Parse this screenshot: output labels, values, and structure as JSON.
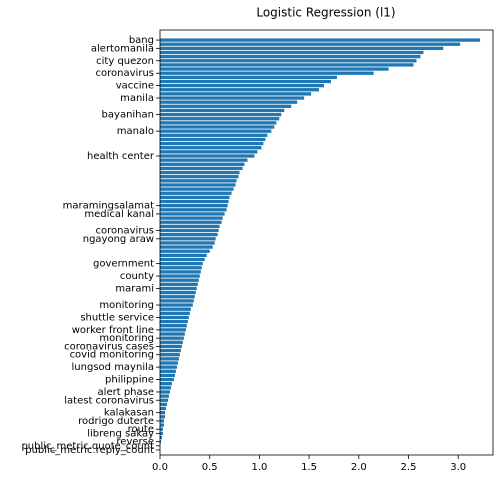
{
  "chart_data": {
    "type": "barh",
    "title": "Logistic Regression (l1)",
    "color": "#1f77b4",
    "categories": [
      "bang",
      null,
      "alertomanila",
      null,
      null,
      "city quezon",
      null,
      null,
      "coronavirus",
      null,
      null,
      "vaccine",
      null,
      null,
      "manila",
      null,
      null,
      null,
      "bayanihan",
      null,
      null,
      null,
      "manalo",
      null,
      null,
      null,
      null,
      null,
      "health center",
      null,
      null,
      null,
      null,
      null,
      null,
      null,
      null,
      null,
      null,
      null,
      "maramingsalamat",
      null,
      "medical kanal",
      null,
      null,
      null,
      "coronavirus",
      null,
      "ngayong araw",
      null,
      null,
      null,
      null,
      null,
      "government",
      null,
      null,
      "county",
      null,
      null,
      "marami",
      null,
      null,
      null,
      "monitoring",
      null,
      null,
      "shuttle service",
      null,
      null,
      "worker front line",
      null,
      "monitoring",
      null,
      "coronavirus cases",
      null,
      "covid monitoring",
      null,
      null,
      "lungsod maynila",
      null,
      null,
      "philippine",
      null,
      null,
      "alert phase",
      null,
      "latest coronavirus",
      null,
      null,
      "kalakasan",
      null,
      "rodrigo duterte",
      null,
      "route",
      "libreng sakay",
      null,
      "reverse",
      "public_metric.quote_count",
      "public_metric.reply_count"
    ],
    "values": [
      3.22,
      3.02,
      2.85,
      2.65,
      2.62,
      2.58,
      2.55,
      2.3,
      2.15,
      1.78,
      1.72,
      1.65,
      1.6,
      1.52,
      1.45,
      1.38,
      1.32,
      1.25,
      1.22,
      1.2,
      1.17,
      1.15,
      1.12,
      1.08,
      1.06,
      1.04,
      1.02,
      0.98,
      0.95,
      0.88,
      0.85,
      0.83,
      0.8,
      0.79,
      0.77,
      0.76,
      0.74,
      0.72,
      0.7,
      0.69,
      0.68,
      0.67,
      0.65,
      0.63,
      0.62,
      0.6,
      0.59,
      0.58,
      0.56,
      0.55,
      0.53,
      0.5,
      0.47,
      0.45,
      0.43,
      0.42,
      0.41,
      0.4,
      0.39,
      0.38,
      0.37,
      0.36,
      0.35,
      0.34,
      0.33,
      0.31,
      0.3,
      0.29,
      0.28,
      0.27,
      0.26,
      0.25,
      0.24,
      0.23,
      0.22,
      0.21,
      0.2,
      0.19,
      0.18,
      0.17,
      0.16,
      0.15,
      0.14,
      0.12,
      0.11,
      0.1,
      0.09,
      0.08,
      0.07,
      0.06,
      0.05,
      0.05,
      0.04,
      0.04,
      0.03,
      0.03,
      0.02,
      0.01,
      0.0,
      0.0
    ],
    "xlim": [
      0,
      3.35
    ],
    "xticks": [
      {
        "value": 0,
        "label": "0.0"
      },
      {
        "value": 0.5,
        "label": "0.5"
      },
      {
        "value": 1,
        "label": "1.0"
      },
      {
        "value": 1.5,
        "label": "1.5"
      },
      {
        "value": 2,
        "label": "2.0"
      },
      {
        "value": 2.5,
        "label": "2.5"
      },
      {
        "value": 3,
        "label": "3.0"
      }
    ]
  }
}
